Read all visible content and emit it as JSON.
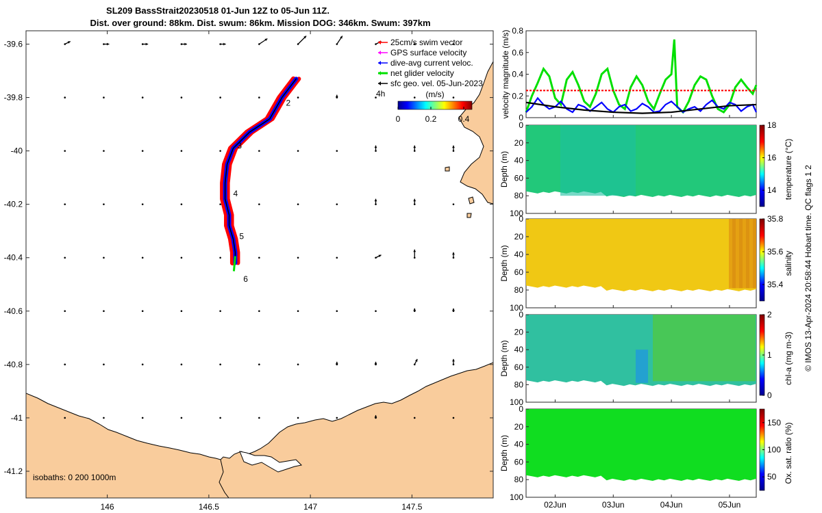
{
  "title": {
    "line1": "SL209 BassStrait20230518 01-Jun 12Z to 05-Jun 11Z.",
    "line2": "Dist. over ground: 88km. Dist. swum: 86km. Mission DOG: 346km. Swum: 397km"
  },
  "credit": "© IMOS 13-Apr-2024 20:58:44 Hobart time. QC flags 1  2",
  "colors": {
    "land": "#f9cc9c",
    "swim": "#ff0000",
    "gps": "#ff00ff",
    "current": "#0000ff",
    "net": "#00e000",
    "geo": "#000000"
  },
  "map": {
    "legend": [
      {
        "label": "25cm/s swim vector",
        "color_key": "swim"
      },
      {
        "label": "GPS surface velocity",
        "color_key": "gps"
      },
      {
        "label": "dive-avg current veloc.",
        "color_key": "current"
      },
      {
        "label": "net glider velocity",
        "color_key": "net"
      },
      {
        "label": "sfc geo. vel. 05-Jun-2023",
        "color_key": "geo"
      }
    ],
    "colorbar_title": "(m/s)",
    "colorbar_prefix": "4h",
    "colorbar_ticks": [
      "0",
      "0.2",
      "0.4"
    ],
    "isobaths_text": "isobaths: 0   200  1000m",
    "day_markers": [
      "2",
      "3",
      "4",
      "5",
      "6"
    ],
    "lat_ticks": [
      "-39.6",
      "-39.8",
      "-40",
      "-40.2",
      "-40.4",
      "-40.6",
      "-40.8",
      "-41",
      "-41.2"
    ],
    "lon_ticks": [
      "146",
      "146.5",
      "147",
      "147.5"
    ],
    "xlim": [
      145.6,
      147.9
    ],
    "ylim": [
      -41.3,
      -39.55
    ]
  },
  "chart_data": [
    {
      "type": "map",
      "title": "SL209 BassStrait20230518 01-Jun 12Z to 05-Jun 11Z.",
      "xlim": [
        145.6,
        147.9
      ],
      "ylim": [
        -41.3,
        -39.55
      ],
      "track_points": [
        {
          "lon": 146.93,
          "lat": -39.73
        },
        {
          "lon": 146.86,
          "lat": -39.8
        },
        {
          "lon": 146.8,
          "lat": -39.88
        },
        {
          "lon": 146.7,
          "lat": -39.93
        },
        {
          "lon": 146.62,
          "lat": -39.99
        },
        {
          "lon": 146.59,
          "lat": -40.05
        },
        {
          "lon": 146.58,
          "lat": -40.12
        },
        {
          "lon": 146.58,
          "lat": -40.18
        },
        {
          "lon": 146.6,
          "lat": -40.24
        },
        {
          "lon": 146.6,
          "lat": -40.28
        },
        {
          "lon": 146.62,
          "lat": -40.33
        },
        {
          "lon": 146.63,
          "lat": -40.38
        },
        {
          "lon": 146.63,
          "lat": -40.42
        }
      ],
      "day_marker_positions": [
        {
          "label": "2",
          "lon": 146.88,
          "lat": -39.82
        },
        {
          "label": "3",
          "lon": 146.64,
          "lat": -39.98
        },
        {
          "label": "4",
          "lon": 146.62,
          "lat": -40.16
        },
        {
          "label": "5",
          "lon": 146.65,
          "lat": -40.32
        },
        {
          "label": "6",
          "lon": 146.67,
          "lat": -40.48
        }
      ],
      "geo_vectors": [
        {
          "lat": -39.6,
          "u": [
            0.02,
            0.02,
            0.02,
            0.02,
            0.02,
            0.03,
            0.03,
            0.02,
            0.02,
            0.0,
            0.0,
            0.0
          ],
          "v": [
            0.01,
            0.0,
            0.0,
            0.0,
            0.0,
            0.02,
            0.03,
            0.03,
            0.01,
            0.0,
            0.0,
            0.0
          ]
        },
        {
          "lat": -39.8,
          "u": [
            0.0,
            0.0,
            0.0,
            0.0,
            0.0,
            0.0,
            0.0,
            0.0,
            0.0,
            0.0,
            0.0,
            0.0
          ],
          "v": [
            0.0,
            0.0,
            0.0,
            0.0,
            0.0,
            0.0,
            0.0,
            0.01,
            0.0,
            0.0,
            0.0,
            0.0
          ]
        },
        {
          "lat": -40.0,
          "u": [
            0.0,
            0.0,
            0.0,
            0.0,
            0.0,
            0.0,
            0.0,
            0.0,
            0.0,
            0.0,
            0.0,
            0.0
          ],
          "v": [
            0.0,
            0.0,
            0.0,
            0.0,
            0.0,
            0.0,
            0.0,
            0.0,
            0.02,
            0.02,
            0.02,
            0.0
          ]
        },
        {
          "lat": -40.2,
          "u": [
            0.0,
            0.0,
            0.0,
            0.0,
            0.0,
            0.0,
            0.0,
            0.0,
            0.0,
            0.0,
            0.0,
            0.0
          ],
          "v": [
            0.0,
            0.0,
            0.0,
            0.0,
            0.0,
            0.0,
            0.0,
            0.0,
            0.02,
            0.02,
            0.0,
            0.0
          ]
        },
        {
          "lat": -40.4,
          "u": [
            0.0,
            0.0,
            0.0,
            0.0,
            0.0,
            0.0,
            0.0,
            0.0,
            0.02,
            0.0,
            0.0,
            0.0
          ],
          "v": [
            0.0,
            0.0,
            0.0,
            0.0,
            0.0,
            0.0,
            0.0,
            0.0,
            0.01,
            0.03,
            0.02,
            0.0
          ]
        },
        {
          "lat": -40.6,
          "u": [
            0.0,
            0.0,
            0.0,
            0.0,
            0.0,
            0.0,
            0.0,
            0.0,
            0.0,
            0.0,
            0.0,
            0.0
          ],
          "v": [
            0.0,
            0.0,
            0.0,
            0.0,
            0.0,
            0.0,
            0.0,
            0.0,
            0.0,
            0.01,
            0.01,
            0.0
          ]
        },
        {
          "lat": -40.8,
          "u": [
            0.0,
            0.0,
            0.0,
            0.0,
            0.0,
            0.0,
            0.0,
            0.0,
            0.0,
            0.01,
            0.0,
            0.0
          ],
          "v": [
            0.0,
            0.0,
            0.0,
            0.0,
            0.0,
            0.0,
            0.0,
            0.01,
            0.01,
            0.02,
            0.02,
            0.02
          ]
        },
        {
          "lat": -41.0,
          "u": [
            0.0,
            0.0,
            0.0,
            0.0,
            0.0,
            0.0,
            0.0,
            0.0,
            0.0,
            0.0,
            0.0,
            0.0
          ],
          "v": [
            0.0,
            0.0,
            0.0,
            0.0,
            0.0,
            0.0,
            0.0,
            0.0,
            0.01,
            0.0,
            0.0,
            0.0
          ]
        }
      ]
    },
    {
      "type": "line",
      "ylabel": "velocity magnitude (m/s)",
      "ylim": [
        0,
        0.8
      ],
      "yticks": [
        "0",
        "0.2",
        "0.4",
        "0.6",
        "0.8"
      ],
      "xticks": [
        "02Jun",
        "03Jun",
        "04Jun",
        "05Jun"
      ],
      "x_days": [
        1.5,
        5.46
      ],
      "series": [
        {
          "color_key": "net",
          "x": [
            1.5,
            1.6,
            1.7,
            1.8,
            1.9,
            2.0,
            2.1,
            2.2,
            2.3,
            2.4,
            2.5,
            2.6,
            2.7,
            2.8,
            2.9,
            3.0,
            3.1,
            3.2,
            3.3,
            3.4,
            3.5,
            3.6,
            3.7,
            3.8,
            3.9,
            4.0,
            4.05,
            4.1,
            4.2,
            4.3,
            4.4,
            4.5,
            4.6,
            4.7,
            4.8,
            4.9,
            5.0,
            5.1,
            5.2,
            5.3,
            5.4,
            5.46
          ],
          "y": [
            0.05,
            0.2,
            0.32,
            0.45,
            0.38,
            0.18,
            0.12,
            0.35,
            0.42,
            0.3,
            0.15,
            0.1,
            0.22,
            0.4,
            0.45,
            0.25,
            0.12,
            0.08,
            0.28,
            0.38,
            0.3,
            0.15,
            0.08,
            0.22,
            0.35,
            0.4,
            0.72,
            0.1,
            0.05,
            0.15,
            0.3,
            0.38,
            0.35,
            0.2,
            0.08,
            0.05,
            0.12,
            0.28,
            0.35,
            0.28,
            0.22,
            0.3
          ]
        },
        {
          "color_key": "current",
          "x": [
            1.5,
            1.6,
            1.7,
            1.8,
            1.9,
            2.0,
            2.1,
            2.2,
            2.3,
            2.4,
            2.5,
            2.6,
            2.7,
            2.8,
            2.9,
            3.0,
            3.1,
            3.2,
            3.3,
            3.4,
            3.5,
            3.6,
            3.7,
            3.8,
            3.9,
            4.0,
            4.1,
            4.2,
            4.3,
            4.4,
            4.5,
            4.6,
            4.7,
            4.8,
            4.9,
            5.0,
            5.1,
            5.2,
            5.3,
            5.4,
            5.46
          ],
          "y": [
            0.05,
            0.1,
            0.18,
            0.12,
            0.08,
            0.1,
            0.15,
            0.08,
            0.05,
            0.12,
            0.1,
            0.06,
            0.1,
            0.14,
            0.08,
            0.05,
            0.1,
            0.12,
            0.06,
            0.08,
            0.13,
            0.1,
            0.05,
            0.06,
            0.12,
            0.15,
            0.1,
            0.05,
            0.08,
            0.1,
            0.06,
            0.12,
            0.16,
            0.1,
            0.08,
            0.14,
            0.12,
            0.06,
            0.1,
            0.12,
            0.05
          ]
        },
        {
          "color_key": "swim",
          "x": [
            1.5,
            5.46
          ],
          "y": [
            0.25,
            0.25
          ]
        },
        {
          "color_key": "geo",
          "x": [
            1.5,
            2.0,
            2.5,
            3.0,
            3.5,
            4.0,
            4.5,
            5.0,
            5.46
          ],
          "y": [
            0.14,
            0.1,
            0.07,
            0.05,
            0.04,
            0.05,
            0.08,
            0.11,
            0.12
          ]
        }
      ]
    },
    {
      "type": "heatmap",
      "ylabel": "Depth (m)",
      "clabel": "temperature (°C)",
      "clim": [
        13,
        18
      ],
      "cticks": [
        "14",
        "16",
        "18"
      ],
      "ylim": [
        100,
        0
      ],
      "yticks": [
        "0",
        "20",
        "40",
        "60",
        "80",
        "100"
      ],
      "typical_value": 15.5
    },
    {
      "type": "heatmap",
      "ylabel": "Depth (m)",
      "clabel": "salinity",
      "clim": [
        35.3,
        35.8
      ],
      "cticks": [
        "35.4",
        "35.6",
        "35.8"
      ],
      "ylim": [
        100,
        0
      ],
      "yticks": [
        "0",
        "20",
        "40",
        "60",
        "80",
        "100"
      ],
      "typical_value": 35.65
    },
    {
      "type": "heatmap",
      "ylabel": "Depth (m)",
      "clabel": "chl-a (mg m-3)",
      "clim": [
        0,
        2
      ],
      "cticks": [
        "0",
        "1",
        "2"
      ],
      "ylim": [
        100,
        0
      ],
      "yticks": [
        "0",
        "20",
        "40",
        "60",
        "80",
        "100"
      ],
      "typical_value": 0.9
    },
    {
      "type": "heatmap",
      "ylabel": "Depth (m)",
      "clabel": "Ox. sat. ratio (%)",
      "clim": [
        25,
        175
      ],
      "cticks": [
        "50",
        "100",
        "150"
      ],
      "ylim": [
        100,
        0
      ],
      "yticks": [
        "0",
        "20",
        "40",
        "60",
        "80",
        "100"
      ],
      "typical_value": 100
    }
  ]
}
